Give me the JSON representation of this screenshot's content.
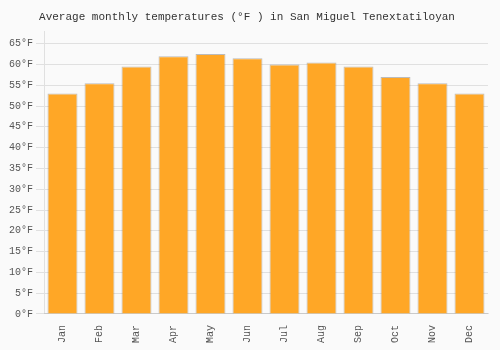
{
  "chart_data": {
    "type": "bar",
    "title": "Average monthly temperatures (°F ) in San Miguel Tenextatiloyan",
    "categories": [
      "Jan",
      "Feb",
      "Mar",
      "Apr",
      "May",
      "Jun",
      "Jul",
      "Aug",
      "Sep",
      "Oct",
      "Nov",
      "Dec"
    ],
    "values": [
      53.0,
      55.5,
      59.5,
      62.0,
      62.5,
      61.5,
      60.0,
      60.5,
      59.5,
      57.0,
      55.5,
      53.0
    ],
    "color": "#FFA726",
    "ylim": [
      0,
      68
    ],
    "yticks": [
      {
        "value": 0,
        "label": "0°F"
      },
      {
        "value": 5,
        "label": "5°F"
      },
      {
        "value": 10,
        "label": "10°F"
      },
      {
        "value": 15,
        "label": "15°F"
      },
      {
        "value": 20,
        "label": "20°F"
      },
      {
        "value": 25,
        "label": "25°F"
      },
      {
        "value": 30,
        "label": "30°F"
      },
      {
        "value": 35,
        "label": "35°F"
      },
      {
        "value": 40,
        "label": "40°F"
      },
      {
        "value": 45,
        "label": "45°F"
      },
      {
        "value": 50,
        "label": "50°F"
      },
      {
        "value": 55,
        "label": "55°F"
      },
      {
        "value": 60,
        "label": "60°F"
      },
      {
        "value": 65,
        "label": "65°F"
      }
    ],
    "grid": true
  }
}
